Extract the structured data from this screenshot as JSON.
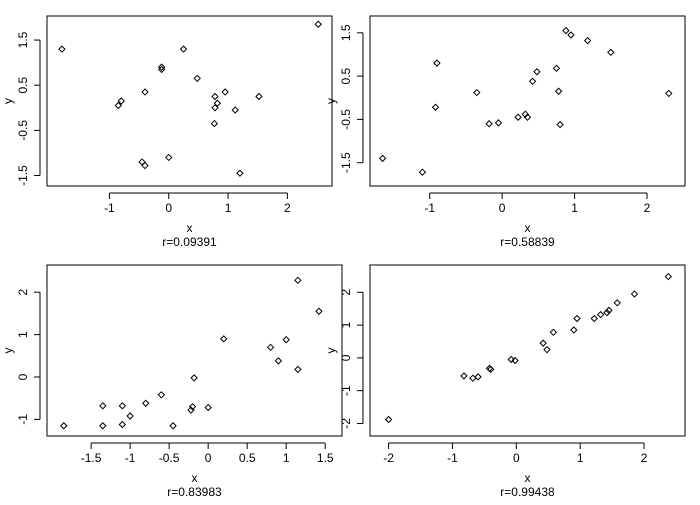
{
  "chart_data": [
    {
      "type": "scatter",
      "xlabel": "x",
      "ylabel": "y",
      "caption": "r=0.09391",
      "xlim": [
        -1.9,
        2.6
      ],
      "ylim": [
        -1.6,
        1.9
      ],
      "xticks": [
        -1,
        0,
        1,
        2
      ],
      "yticks": [
        -1.5,
        -0.5,
        0.5,
        1.5
      ],
      "x": [
        -1.8,
        -0.85,
        -0.8,
        -0.4,
        -0.45,
        -0.4,
        -0.12,
        -0.12,
        0.0,
        0.25,
        0.48,
        0.77,
        0.78,
        0.82,
        0.78,
        0.95,
        1.12,
        1.2,
        1.52,
        2.52
      ],
      "y": [
        1.3,
        0.05,
        0.15,
        0.35,
        -1.2,
        -1.28,
        0.85,
        0.9,
        -1.1,
        1.3,
        0.65,
        -0.35,
        0.25,
        0.1,
        0.0,
        0.35,
        -0.05,
        -1.45,
        0.25,
        1.85
      ]
    },
    {
      "type": "scatter",
      "xlabel": "x",
      "ylabel": "y",
      "caption": "r=0.58839",
      "xlim": [
        -1.7,
        2.4
      ],
      "ylim": [
        -1.9,
        1.75
      ],
      "xticks": [
        -1,
        0,
        1,
        2
      ],
      "yticks": [
        -1.5,
        -0.5,
        0.5,
        1.5
      ],
      "x": [
        -1.65,
        -1.1,
        -0.9,
        -0.92,
        -0.35,
        -0.18,
        -0.05,
        0.22,
        0.32,
        0.35,
        0.42,
        0.48,
        0.75,
        0.78,
        0.8,
        0.88,
        0.95,
        1.18,
        1.5,
        2.3
      ],
      "y": [
        -1.4,
        -1.72,
        0.8,
        -0.22,
        0.12,
        -0.6,
        -0.58,
        -0.45,
        -0.38,
        -0.45,
        0.38,
        0.6,
        0.68,
        0.15,
        -0.62,
        1.55,
        1.45,
        1.32,
        1.05,
        0.1
      ]
    },
    {
      "type": "scatter",
      "xlabel": "x",
      "ylabel": "y",
      "caption": "r=0.83983",
      "xlim": [
        -1.95,
        1.6
      ],
      "ylim": [
        -1.25,
        2.5
      ],
      "xticks": [
        -1.5,
        -1.0,
        -0.5,
        0.0,
        0.5,
        1.0,
        1.5
      ],
      "yticks": [
        -1.0,
        0.0,
        1.0,
        2.0
      ],
      "x": [
        -1.85,
        -1.35,
        -1.35,
        -1.1,
        -1.1,
        -1.0,
        -0.8,
        -0.6,
        -0.45,
        -0.22,
        -0.2,
        -0.18,
        0.0,
        0.2,
        0.8,
        0.9,
        1.0,
        1.15,
        1.15,
        1.42
      ],
      "y": [
        -1.15,
        -0.68,
        -1.15,
        -0.68,
        -1.12,
        -0.92,
        -0.62,
        -0.42,
        -1.15,
        -0.78,
        -0.7,
        -0.02,
        -0.72,
        0.9,
        0.7,
        0.38,
        0.88,
        0.18,
        2.28,
        1.55
      ]
    },
    {
      "type": "scatter",
      "xlabel": "x",
      "ylabel": "y",
      "caption": "r=0.99438",
      "xlim": [
        -2.15,
        2.5
      ],
      "ylim": [
        -2.2,
        2.65
      ],
      "xticks": [
        -2,
        -1,
        0,
        1,
        2
      ],
      "yticks": [
        -2,
        -1,
        0,
        1,
        2
      ],
      "x": [
        -2.0,
        -0.82,
        -0.68,
        -0.6,
        -0.42,
        -0.4,
        -0.08,
        -0.02,
        0.42,
        0.48,
        0.58,
        0.9,
        0.95,
        1.22,
        1.32,
        1.42,
        1.45,
        1.58,
        1.85,
        2.38
      ],
      "y": [
        -1.88,
        -0.55,
        -0.62,
        -0.58,
        -0.32,
        -0.35,
        -0.05,
        -0.08,
        0.45,
        0.25,
        0.78,
        0.85,
        1.2,
        1.2,
        1.32,
        1.38,
        1.45,
        1.68,
        1.95,
        2.48
      ]
    }
  ]
}
